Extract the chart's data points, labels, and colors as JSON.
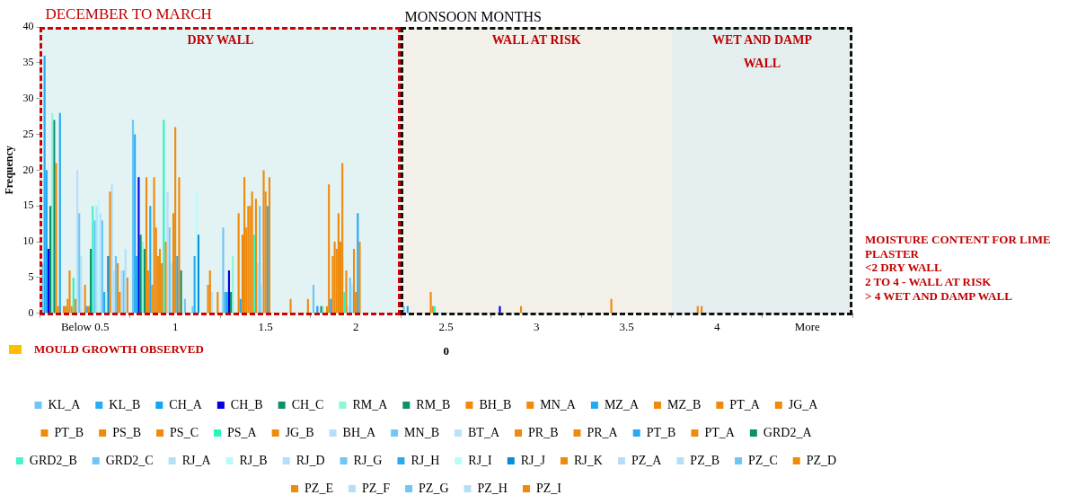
{
  "chart_data": {
    "type": "bar",
    "xlabel": "0",
    "ylabel": "Frequency",
    "categories": [
      "Below 0.5",
      "1",
      "1.5",
      "2",
      "2.5",
      "3",
      "3.5",
      "4",
      "More"
    ],
    "ylim": [
      0,
      40
    ],
    "yticks": [
      0,
      5,
      10,
      15,
      20,
      25,
      30,
      35,
      40
    ],
    "legend": "bottom",
    "bands": [
      {
        "axis": "x",
        "from": "Below 0.5",
        "to": "2",
        "label": "DRY WALL",
        "color": "#e3f3f4"
      },
      {
        "axis": "x",
        "from": "2.5",
        "to": "3.5",
        "label": "WALL AT RISK",
        "color": "#f3f0ea"
      },
      {
        "axis": "x",
        "from": "4",
        "to": "More",
        "label": "WET AND DAMP WALL",
        "color": "#e4eeee"
      }
    ],
    "annotations": [
      "DECEMBER TO MARCH",
      "MONSOON MONTHS",
      "MOISTURE CONTENT  FOR LIME PLASTER",
      "<2 DRY WALL",
      "2 TO 4  - WALL AT RISK",
      "> 4 WET AND DAMP WALL",
      "MOULD GROWTH OBSERVED"
    ],
    "series": [
      {
        "name": "KL_A",
        "color": "#6ec6f5",
        "values": [
          7,
          27,
          12,
          4,
          1,
          0,
          0,
          0,
          0
        ]
      },
      {
        "name": "KL_B",
        "color": "#29abf2",
        "values": [
          36,
          25,
          3,
          0,
          0,
          0,
          0,
          0,
          0
        ]
      },
      {
        "name": "CH_A",
        "color": "#14a5f0",
        "values": [
          20,
          8,
          3,
          1,
          1,
          0,
          0,
          0,
          0
        ]
      },
      {
        "name": "CH_B",
        "color": "#0000e0",
        "values": [
          9,
          19,
          6,
          0,
          0,
          1,
          0,
          0,
          0
        ]
      },
      {
        "name": "CH_C",
        "color": "#0e8f6b",
        "values": [
          15,
          11,
          3,
          1,
          0,
          0,
          0,
          0,
          0
        ]
      },
      {
        "name": "RM_A",
        "color": "#8df5d8",
        "values": [
          28,
          10,
          8,
          1,
          0,
          0,
          0,
          0,
          0
        ]
      },
      {
        "name": "RM_B",
        "color": "#0e8f6b",
        "values": [
          27,
          9,
          0,
          0,
          0,
          0,
          0,
          0,
          0
        ]
      },
      {
        "name": "BH_B",
        "color": "#ef8a0c",
        "values": [
          21,
          19,
          0,
          1,
          0,
          0,
          0,
          0,
          0
        ]
      },
      {
        "name": "MN_A",
        "color": "#ef8a0c",
        "values": [
          1,
          6,
          14,
          18,
          0,
          0,
          0,
          0,
          0
        ]
      },
      {
        "name": "MZ_A",
        "color": "#22aaf0",
        "values": [
          28,
          15,
          2,
          2,
          0,
          0,
          0,
          0,
          0
        ]
      },
      {
        "name": "MZ_B",
        "color": "#ef8a0c",
        "values": [
          0,
          4,
          11,
          8,
          0,
          0,
          0,
          0,
          0
        ]
      },
      {
        "name": "PT_A",
        "color": "#ef8a0c",
        "values": [
          1,
          19,
          19,
          10,
          0,
          0,
          0,
          0,
          0
        ]
      },
      {
        "name": "JG_A",
        "color": "#ef8a0c",
        "values": [
          1,
          12,
          12,
          9,
          0,
          0,
          0,
          1,
          0
        ]
      },
      {
        "name": "PT_B",
        "color": "#ef8a0c",
        "values": [
          2,
          8,
          15,
          14,
          0,
          0,
          0,
          0,
          0
        ]
      },
      {
        "name": "PS_B",
        "color": "#ef8a0c",
        "values": [
          6,
          9,
          15,
          10,
          3,
          1,
          2,
          1,
          0
        ]
      },
      {
        "name": "PS_C",
        "color": "#ef8a0c",
        "values": [
          1,
          7,
          17,
          21,
          1,
          0,
          0,
          0,
          0
        ]
      },
      {
        "name": "PS_A",
        "color": "#2af5c0",
        "values": [
          5,
          27,
          11,
          3,
          1,
          0,
          0,
          0,
          0
        ]
      },
      {
        "name": "JG_B",
        "color": "#ef8a0c",
        "values": [
          2,
          10,
          16,
          6,
          0,
          0,
          0,
          0,
          0
        ]
      },
      {
        "name": "BH_A",
        "color": "#b4dff7",
        "values": [
          20,
          17,
          7,
          1,
          0,
          0,
          0,
          0,
          0
        ]
      },
      {
        "name": "MN_B",
        "color": "#6fc7f5",
        "values": [
          14,
          12,
          15,
          5,
          0,
          0,
          0,
          0,
          0
        ]
      },
      {
        "name": "BT_A",
        "color": "#b8e3f8",
        "values": [
          8,
          7,
          4,
          4,
          0,
          0,
          0,
          0,
          0
        ]
      },
      {
        "name": "PR_B",
        "color": "#ef8a0c",
        "values": [
          0,
          14,
          20,
          9,
          0,
          0,
          0,
          0,
          0
        ]
      },
      {
        "name": "PR_A",
        "color": "#ef8a0c",
        "values": [
          4,
          26,
          17,
          3,
          0,
          0,
          0,
          0,
          0
        ]
      },
      {
        "name": "PT_B",
        "color": "#2aa8f0",
        "values": [
          1,
          8,
          15,
          14,
          0,
          0,
          0,
          0,
          0
        ]
      },
      {
        "name": "PT_A",
        "color": "#ef8a0c",
        "values": [
          1,
          19,
          19,
          10,
          0,
          0,
          0,
          0,
          0
        ]
      },
      {
        "name": "GRD2_A",
        "color": "#0e8f6b",
        "values": [
          9,
          6,
          0,
          0,
          0,
          0,
          0,
          0,
          0
        ]
      },
      {
        "name": "GRD2_B",
        "color": "#44f5c8",
        "values": [
          15,
          0,
          0,
          0,
          0,
          0,
          0,
          0,
          0
        ]
      },
      {
        "name": "GRD2_C",
        "color": "#6ec6f5",
        "values": [
          13,
          2,
          0,
          0,
          0,
          0,
          0,
          0,
          0
        ]
      },
      {
        "name": "RJ_A",
        "color": "#b4dff7",
        "values": [
          15,
          0,
          0,
          0,
          0,
          0,
          0,
          0,
          0
        ]
      },
      {
        "name": "RJ_B",
        "color": "#b8fbfb",
        "values": [
          16,
          0,
          0,
          0,
          0,
          0,
          0,
          0,
          0
        ]
      },
      {
        "name": "RJ_D",
        "color": "#b4dff7",
        "values": [
          14,
          0,
          0,
          0,
          0,
          0,
          0,
          0,
          0
        ]
      },
      {
        "name": "RJ_G",
        "color": "#6ec6f5",
        "values": [
          13,
          1,
          0,
          0,
          0,
          0,
          0,
          0,
          0
        ]
      },
      {
        "name": "RJ_H",
        "color": "#29abf2",
        "values": [
          3,
          8,
          0,
          0,
          0,
          0,
          0,
          0,
          0
        ]
      },
      {
        "name": "RJ_I",
        "color": "#b8fbfb",
        "values": [
          3,
          17,
          0,
          0,
          0,
          0,
          0,
          0,
          0
        ]
      },
      {
        "name": "RJ_J",
        "color": "#0a8ad8",
        "values": [
          8,
          11,
          0,
          0,
          0,
          0,
          0,
          0,
          0
        ]
      },
      {
        "name": "RJ_K",
        "color": "#ef8a0c",
        "values": [
          17,
          0,
          2,
          0,
          0,
          0,
          0,
          0,
          0
        ]
      },
      {
        "name": "PZ_A",
        "color": "#b4dff7",
        "values": [
          18,
          0,
          0,
          0,
          0,
          0,
          0,
          0,
          0
        ]
      },
      {
        "name": "PZ_B",
        "color": "#b4dff7",
        "values": [
          6,
          0,
          0,
          0,
          0,
          0,
          0,
          0,
          0
        ]
      },
      {
        "name": "PZ_C",
        "color": "#6ec6f5",
        "values": [
          8,
          0,
          0,
          0,
          0,
          0,
          0,
          0,
          0
        ]
      },
      {
        "name": "PZ_D",
        "color": "#ef8a0c",
        "values": [
          7,
          4,
          0,
          0,
          0,
          0,
          0,
          0,
          0
        ]
      },
      {
        "name": "PZ_E",
        "color": "#ef8a0c",
        "values": [
          3,
          6,
          0,
          0,
          0,
          0,
          0,
          0,
          0
        ]
      },
      {
        "name": "PZ_F",
        "color": "#b4dff7",
        "values": [
          6,
          3,
          0,
          0,
          0,
          0,
          0,
          0,
          0
        ]
      },
      {
        "name": "PZ_G",
        "color": "#6ec6f5",
        "values": [
          6,
          0,
          0,
          0,
          0,
          0,
          0,
          0,
          0
        ]
      },
      {
        "name": "PZ_H",
        "color": "#b4dff7",
        "values": [
          9,
          0,
          0,
          0,
          0,
          0,
          0,
          0,
          0
        ]
      },
      {
        "name": "PZ_I",
        "color": "#ef8a0c",
        "values": [
          5,
          3,
          2,
          0,
          0,
          0,
          0,
          0,
          0
        ]
      }
    ]
  }
}
